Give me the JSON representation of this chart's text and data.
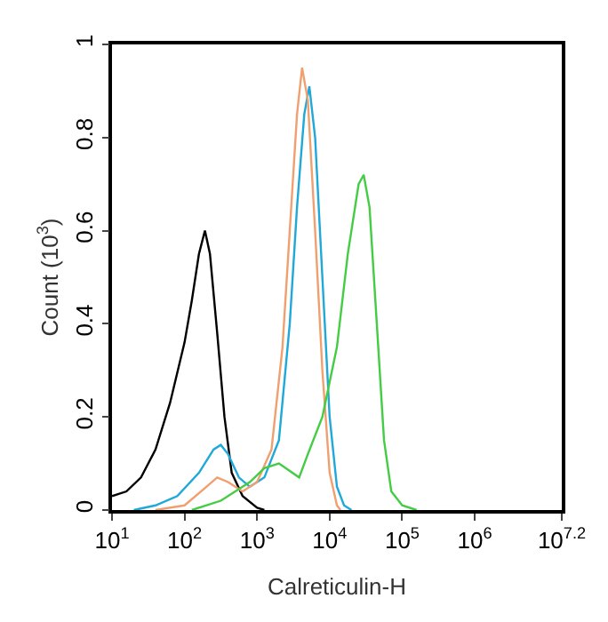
{
  "chart_data": {
    "type": "line",
    "xlabel": "Calreticulin-H",
    "ylabel": "Count (10$^{3}$)",
    "log": "x",
    "marker": "none",
    "line_style": "solid",
    "xlim": [
      10,
      15848932
    ],
    "xticks": [
      {
        "value": 10,
        "label": "10$^{1}$"
      },
      {
        "value": 100,
        "label": "10$^{2}$"
      },
      {
        "value": 1000,
        "label": "10$^{3}$"
      },
      {
        "value": 10000,
        "label": "10$^{4}$"
      },
      {
        "value": 100000,
        "label": "10$^{5}$"
      },
      {
        "value": 1000000,
        "label": "10$^{6}$"
      },
      {
        "value": 15848932,
        "label": "10$^{7.2}$"
      }
    ],
    "ylim": [
      0,
      1
    ],
    "yticks": [
      0,
      0.2,
      0.4,
      0.6,
      0.8,
      1
    ],
    "series": [
      {
        "color": "#000000",
        "x": [
          10,
          15.8,
          25.1,
          39.8,
          63.1,
          100,
          126,
          158,
          191,
          224,
          282,
          355,
          447,
          631,
          1000,
          1260
        ],
        "values": [
          0.03,
          0.04,
          0.07,
          0.13,
          0.23,
          0.36,
          0.45,
          0.55,
          0.6,
          0.55,
          0.38,
          0.2,
          0.08,
          0.03,
          0.005,
          0
        ]
      },
      {
        "color": "#1fa8d8",
        "x": [
          20,
          39.8,
          79.4,
          158,
          251,
          316,
          398,
          562,
          794,
          1260,
          2000,
          2820,
          3550,
          4470,
          5250,
          6310,
          7940,
          10000,
          12600,
          15800,
          20000
        ],
        "values": [
          0,
          0.01,
          0.03,
          0.08,
          0.13,
          0.14,
          0.12,
          0.07,
          0.05,
          0.07,
          0.15,
          0.4,
          0.65,
          0.85,
          0.91,
          0.8,
          0.5,
          0.2,
          0.05,
          0.01,
          0
        ]
      },
      {
        "color": "#f0a070",
        "x": [
          39.8,
          100,
          200,
          282,
          398,
          631,
          1000,
          1580,
          2240,
          2820,
          3550,
          4170,
          5010,
          6310,
          7940,
          10000,
          12600,
          14100
        ],
        "values": [
          0,
          0.01,
          0.05,
          0.07,
          0.06,
          0.04,
          0.06,
          0.13,
          0.35,
          0.6,
          0.85,
          0.95,
          0.88,
          0.6,
          0.3,
          0.08,
          0.01,
          0
        ]
      },
      {
        "color": "#44cc44",
        "x": [
          126,
          316,
          794,
          1260,
          2000,
          3800,
          5010,
          7940,
          12600,
          17800,
          25100,
          29500,
          35500,
          44700,
          56200,
          70800,
          100000,
          158000
        ],
        "values": [
          0,
          0.02,
          0.06,
          0.09,
          0.1,
          0.07,
          0.12,
          0.2,
          0.35,
          0.55,
          0.7,
          0.72,
          0.65,
          0.4,
          0.15,
          0.04,
          0.01,
          0
        ]
      }
    ]
  }
}
